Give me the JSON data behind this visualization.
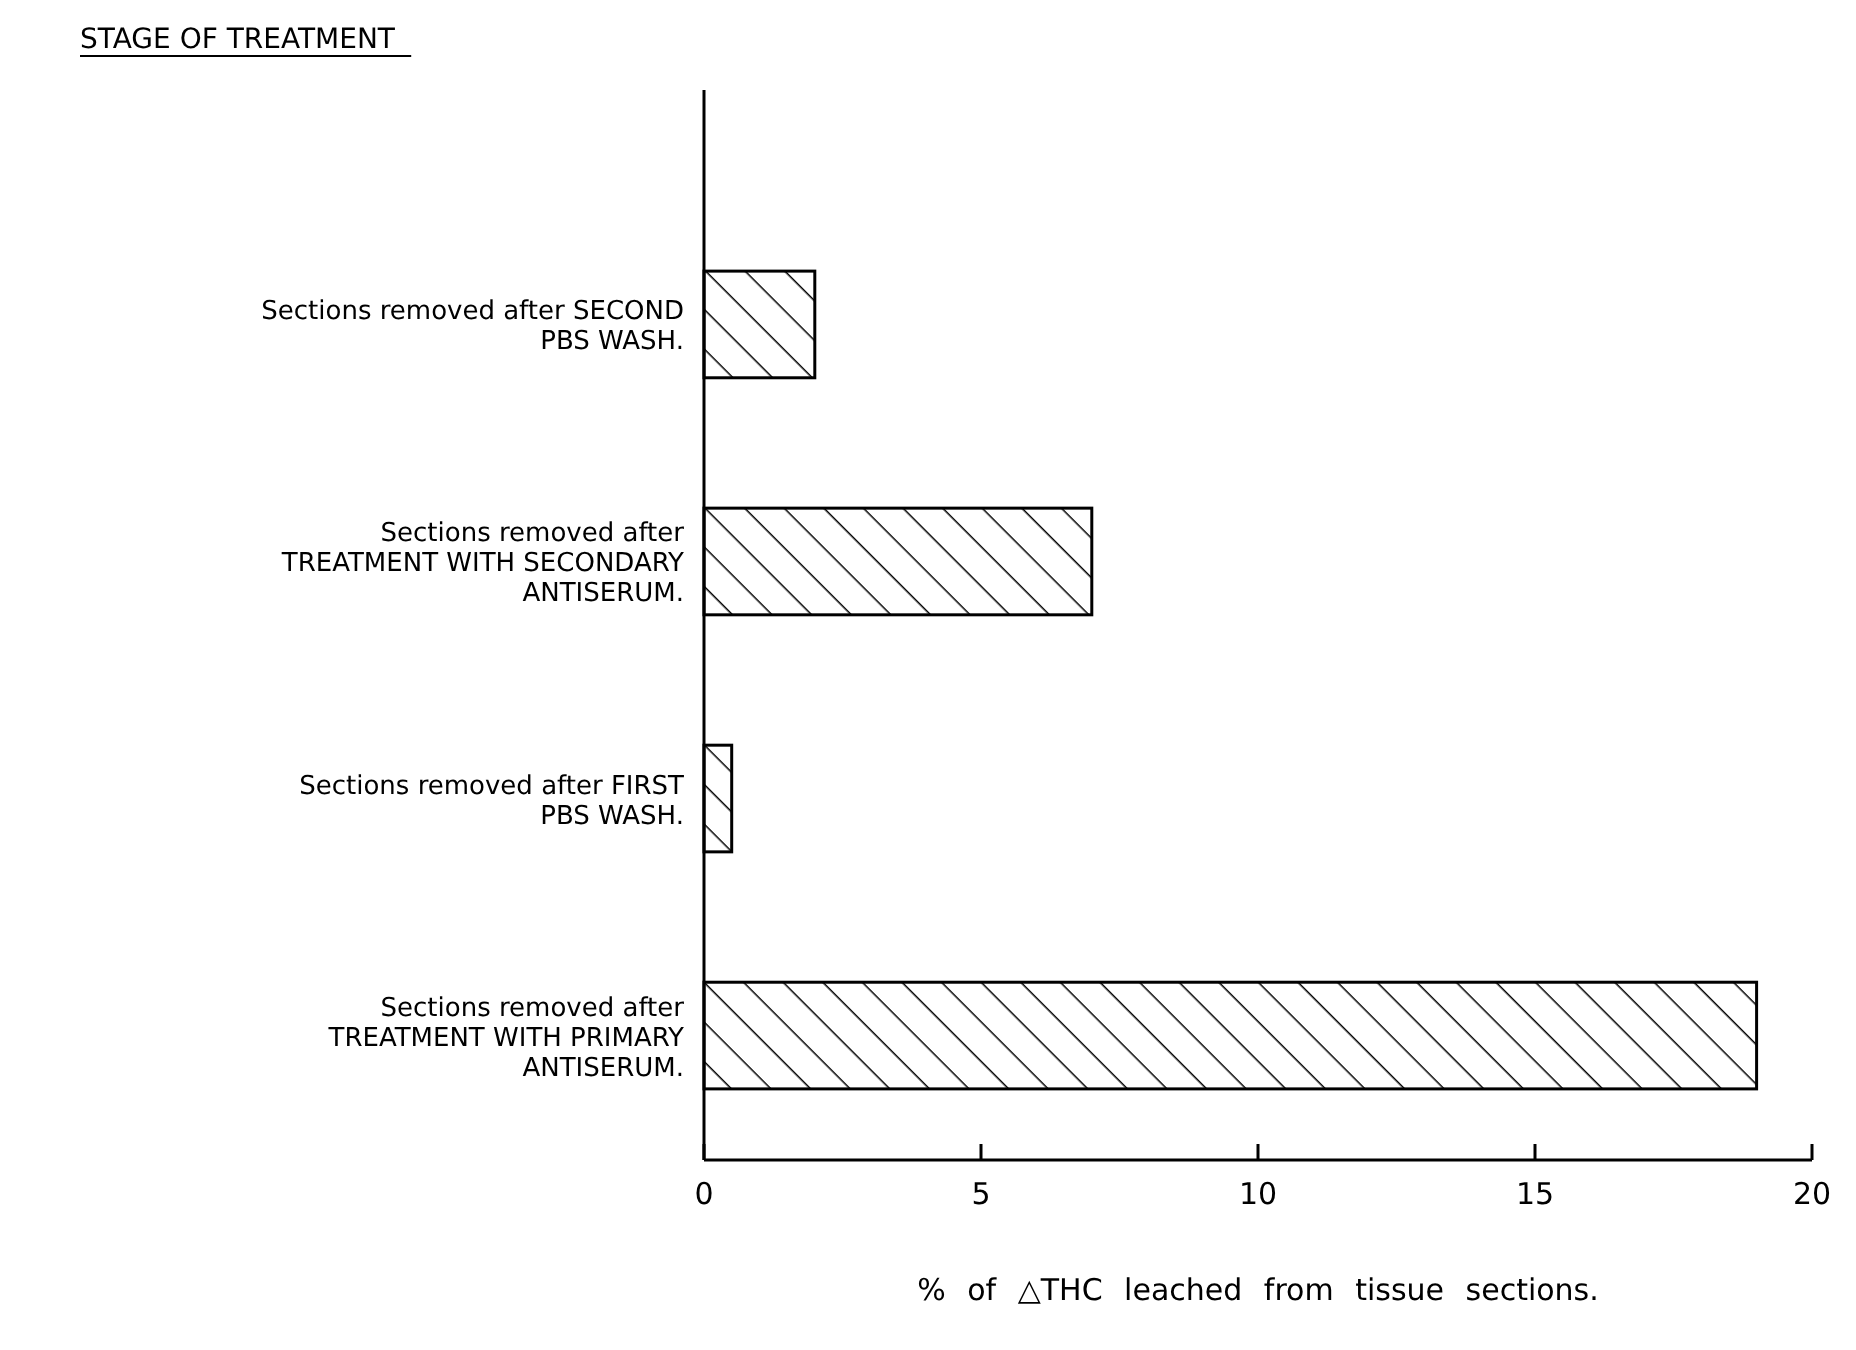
{
  "chart_data": {
    "type": "bar",
    "orientation": "horizontal",
    "annotations": [
      "STAGE OF TREATMENT"
    ],
    "xlabel": "% of △THC leached from tissue sections.",
    "categories": [
      "Sections removed after SECOND\nPBS WASH.",
      "Sections removed after\nTREATMENT WITH SECONDARY\nANTISERUM.",
      "Sections removed after FIRST\nPBS WASH.",
      "Sections removed after\nTREATMENT WITH PRIMARY\nANTISERUM."
    ],
    "values": [
      2,
      7,
      0.5,
      19
    ],
    "color": "#000000",
    "xlim": [
      0,
      20
    ],
    "xticks": [
      0,
      5,
      10,
      15,
      20
    ],
    "grid": false
  }
}
